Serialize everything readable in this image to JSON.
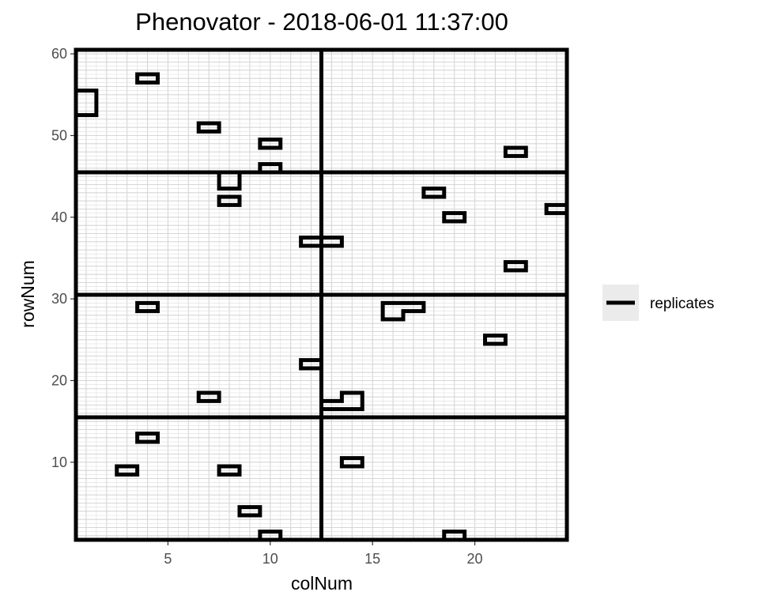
{
  "chart_data": {
    "type": "grid-layout",
    "title": "Phenovator - 2018-06-01 11:37:00",
    "xlabel": "colNum",
    "ylabel": "rowNum",
    "xlim": [
      0.5,
      24.5
    ],
    "ylim": [
      0.5,
      60.5
    ],
    "x_ticks": [
      5,
      10,
      15,
      20
    ],
    "y_ticks": [
      10,
      20,
      30,
      40,
      50,
      60
    ],
    "grid": true,
    "legend": {
      "position": "right",
      "entries": [
        {
          "label": "replicates",
          "style": "thick-black-line"
        }
      ]
    },
    "replicate_boundaries": {
      "columns": [
        12.5
      ],
      "rows": [
        15.5,
        30.5,
        45.5
      ]
    },
    "highlighted_cells": [
      [
        4,
        57
      ],
      [
        1,
        55
      ],
      [
        1,
        54
      ],
      [
        1,
        53
      ],
      [
        7,
        51
      ],
      [
        10,
        49
      ],
      [
        10,
        46
      ],
      [
        22,
        48
      ],
      [
        8,
        45
      ],
      [
        8,
        44
      ],
      [
        8,
        42
      ],
      [
        18,
        43
      ],
      [
        19,
        40
      ],
      [
        24,
        41
      ],
      [
        12,
        37
      ],
      [
        13,
        37
      ],
      [
        22,
        34
      ],
      [
        4,
        29
      ],
      [
        16,
        29
      ],
      [
        17,
        29
      ],
      [
        16,
        28
      ],
      [
        21,
        25
      ],
      [
        12,
        22
      ],
      [
        7,
        18
      ],
      [
        14,
        18
      ],
      [
        13,
        17
      ],
      [
        14,
        17
      ],
      [
        4,
        13
      ],
      [
        3,
        9
      ],
      [
        8,
        9
      ],
      [
        14,
        10
      ],
      [
        9,
        4
      ],
      [
        10,
        1
      ],
      [
        19,
        1
      ]
    ]
  }
}
